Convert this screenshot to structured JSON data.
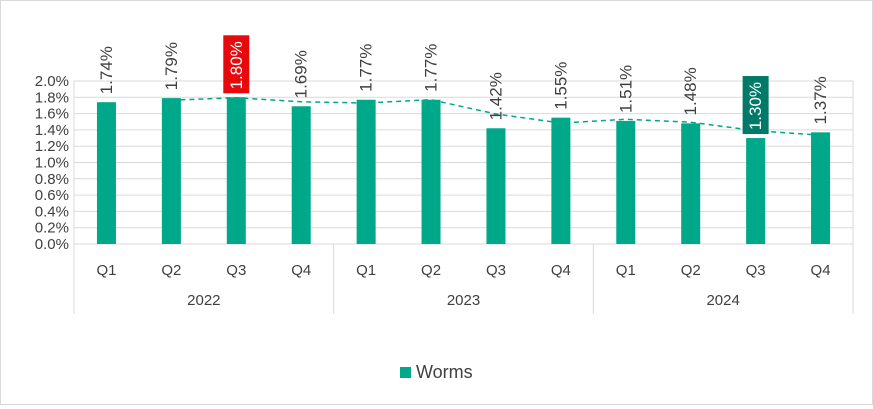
{
  "colors": {
    "bar": "#00a88a",
    "trend": "#00a88a",
    "highlight_max": "#e8090c",
    "highlight_min": "#007a68",
    "grid": "#d9d9d9",
    "text": "#404040"
  },
  "chart_data": {
    "type": "bar",
    "categories": [
      "Q1",
      "Q2",
      "Q3",
      "Q4",
      "Q1",
      "Q2",
      "Q3",
      "Q4",
      "Q1",
      "Q2",
      "Q3",
      "Q4"
    ],
    "groups": [
      {
        "label": "2022",
        "span": 4
      },
      {
        "label": "2023",
        "span": 4
      },
      {
        "label": "2024",
        "span": 4
      }
    ],
    "series": [
      {
        "name": "Worms",
        "values": [
          1.74,
          1.79,
          1.8,
          1.69,
          1.77,
          1.77,
          1.42,
          1.55,
          1.51,
          1.48,
          1.3,
          1.37
        ],
        "labels": [
          "1.74%",
          "1.79%",
          "1.80%",
          "1.69%",
          "1.77%",
          "1.77%",
          "1.42%",
          "1.55%",
          "1.51%",
          "1.48%",
          "1.30%",
          "1.37%"
        ]
      }
    ],
    "trendline": {
      "type": "moving-average",
      "period": 2,
      "style": "dashed"
    },
    "highlights": [
      {
        "index": 2,
        "color_key": "highlight_max"
      },
      {
        "index": 10,
        "color_key": "highlight_min"
      }
    ],
    "ylim": [
      0,
      2.0
    ],
    "yticks": [
      "0.0%",
      "0.2%",
      "0.4%",
      "0.6%",
      "0.8%",
      "1.0%",
      "1.2%",
      "1.4%",
      "1.6%",
      "1.8%",
      "2.0%"
    ],
    "xlabel": "",
    "ylabel": "",
    "legend": {
      "position": "bottom",
      "entries": [
        "Worms"
      ]
    },
    "grid": {
      "vertical_category_separators": true
    }
  }
}
